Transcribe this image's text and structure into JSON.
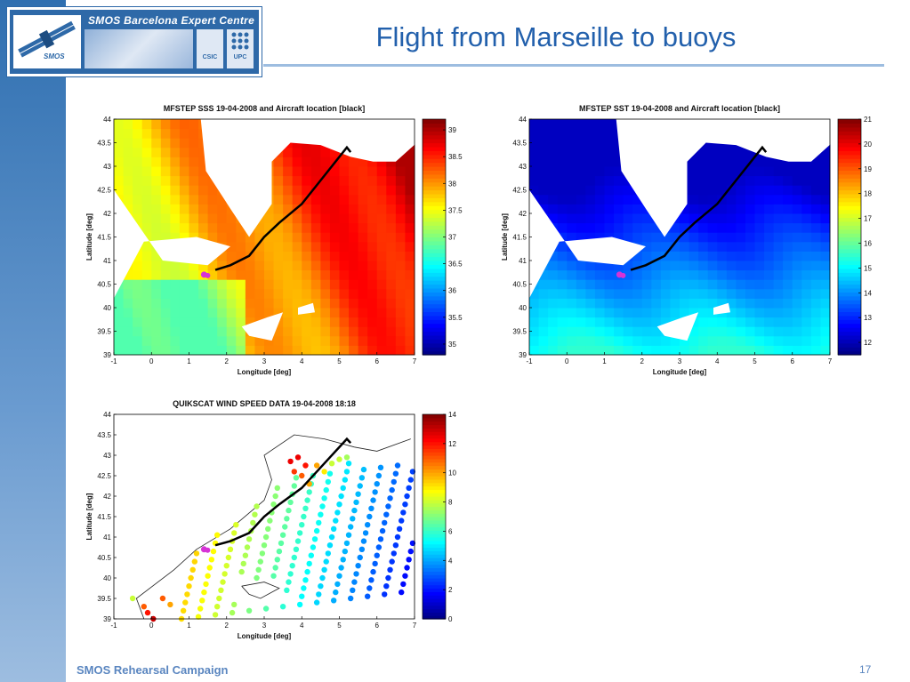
{
  "slide": {
    "title": "Flight from Marseille to buoys",
    "footer": "SMOS Rehearsal Campaign",
    "page_number": "17",
    "logo": {
      "title": "SMOS Barcelona Expert Centre",
      "sat_label": "SMOS",
      "csic": "CSIC",
      "upc": "UPC"
    }
  },
  "chart_data": [
    {
      "type": "heatmap",
      "title": "MFSTEP SSS 19-04-2008 and Aircraft location [black]",
      "xlabel": "Longitude [deg]",
      "ylabel": "Latitude [deg]",
      "xlim": [
        -1,
        7
      ],
      "ylim": [
        39,
        44
      ],
      "xticks": [
        "-1",
        "0",
        "1",
        "2",
        "3",
        "4",
        "5",
        "6",
        "7"
      ],
      "yticks": [
        "39",
        "39.5",
        "40",
        "40.5",
        "41",
        "41.5",
        "42",
        "42.5",
        "43",
        "43.5",
        "44"
      ],
      "colorbar": {
        "range": [
          34.8,
          39.2
        ],
        "ticks": [
          "35",
          "35.5",
          "36",
          "36.5",
          "37",
          "37.5",
          "38",
          "38.5",
          "39"
        ],
        "colormap": "jet"
      },
      "aircraft_track": [
        [
          1.7,
          40.8
        ],
        [
          2.1,
          40.9
        ],
        [
          2.6,
          41.1
        ],
        [
          3.0,
          41.5
        ],
        [
          3.4,
          41.8
        ],
        [
          4.0,
          42.2
        ],
        [
          4.6,
          42.8
        ],
        [
          5.2,
          43.4
        ],
        [
          5.3,
          43.3
        ]
      ],
      "marker": {
        "lon": 1.4,
        "lat": 40.7,
        "color": "#d633d6"
      }
    },
    {
      "type": "heatmap",
      "title": "MFSTEP SST 19-04-2008 and Aircraft location [black]",
      "xlabel": "Longitude [deg]",
      "ylabel": "Latitude [deg]",
      "xlim": [
        -1,
        7
      ],
      "ylim": [
        39,
        44
      ],
      "xticks": [
        "-1",
        "0",
        "1",
        "2",
        "3",
        "4",
        "5",
        "6",
        "7"
      ],
      "yticks": [
        "39",
        "39.5",
        "40",
        "40.5",
        "41",
        "41.5",
        "42",
        "42.5",
        "43",
        "43.5",
        "44"
      ],
      "colorbar": {
        "range": [
          11.5,
          21
        ],
        "ticks": [
          "12",
          "13",
          "14",
          "15",
          "16",
          "17",
          "18",
          "19",
          "20",
          "21"
        ],
        "colormap": "jet"
      },
      "aircraft_track": [
        [
          1.7,
          40.8
        ],
        [
          2.1,
          40.9
        ],
        [
          2.6,
          41.1
        ],
        [
          3.0,
          41.5
        ],
        [
          3.4,
          41.8
        ],
        [
          4.0,
          42.2
        ],
        [
          4.6,
          42.8
        ],
        [
          5.2,
          43.4
        ],
        [
          5.3,
          43.3
        ]
      ],
      "marker": {
        "lon": 1.4,
        "lat": 40.7,
        "color": "#d633d6"
      }
    },
    {
      "type": "scatter",
      "title": "QUIKSCAT WIND SPEED DATA 19-04-2008 18:18",
      "xlabel": "Longitude [deg]",
      "ylabel": "Latitude [deg]",
      "xlim": [
        -1,
        7
      ],
      "ylim": [
        39,
        44
      ],
      "xticks": [
        "-1",
        "0",
        "1",
        "2",
        "3",
        "4",
        "5",
        "6",
        "7"
      ],
      "yticks": [
        "39",
        "39.5",
        "40",
        "40.5",
        "41",
        "41.5",
        "42",
        "42.5",
        "43",
        "43.5",
        "44"
      ],
      "colorbar": {
        "range": [
          0,
          14
        ],
        "ticks": [
          "0",
          "2",
          "4",
          "6",
          "8",
          "10",
          "12",
          "14"
        ],
        "colormap": "jet"
      },
      "aircraft_track": [
        [
          1.7,
          40.8
        ],
        [
          2.1,
          40.9
        ],
        [
          2.6,
          41.1
        ],
        [
          3.0,
          41.5
        ],
        [
          3.4,
          41.8
        ],
        [
          4.0,
          42.2
        ],
        [
          4.6,
          42.8
        ],
        [
          5.2,
          43.4
        ],
        [
          5.3,
          43.3
        ]
      ],
      "marker": {
        "lon": 1.4,
        "lat": 40.7,
        "color": "#d633d6"
      },
      "wind_points": [
        [
          3.9,
          42.95,
          12.5
        ],
        [
          4.1,
          42.75,
          12
        ],
        [
          3.7,
          42.85,
          12.5
        ],
        [
          3.8,
          42.6,
          11.5
        ],
        [
          4.0,
          42.5,
          11
        ],
        [
          4.2,
          42.3,
          10
        ],
        [
          4.4,
          42.75,
          10
        ],
        [
          4.6,
          42.6,
          9
        ],
        [
          4.8,
          42.8,
          8
        ],
        [
          5.0,
          42.9,
          8
        ],
        [
          5.2,
          42.95,
          7.5
        ],
        [
          -0.5,
          39.5,
          8
        ],
        [
          -0.2,
          39.3,
          11
        ],
        [
          -0.1,
          39.15,
          12
        ],
        [
          0.05,
          39.0,
          13
        ],
        [
          0.3,
          39.5,
          11
        ],
        [
          0.5,
          39.35,
          10
        ]
      ]
    }
  ]
}
